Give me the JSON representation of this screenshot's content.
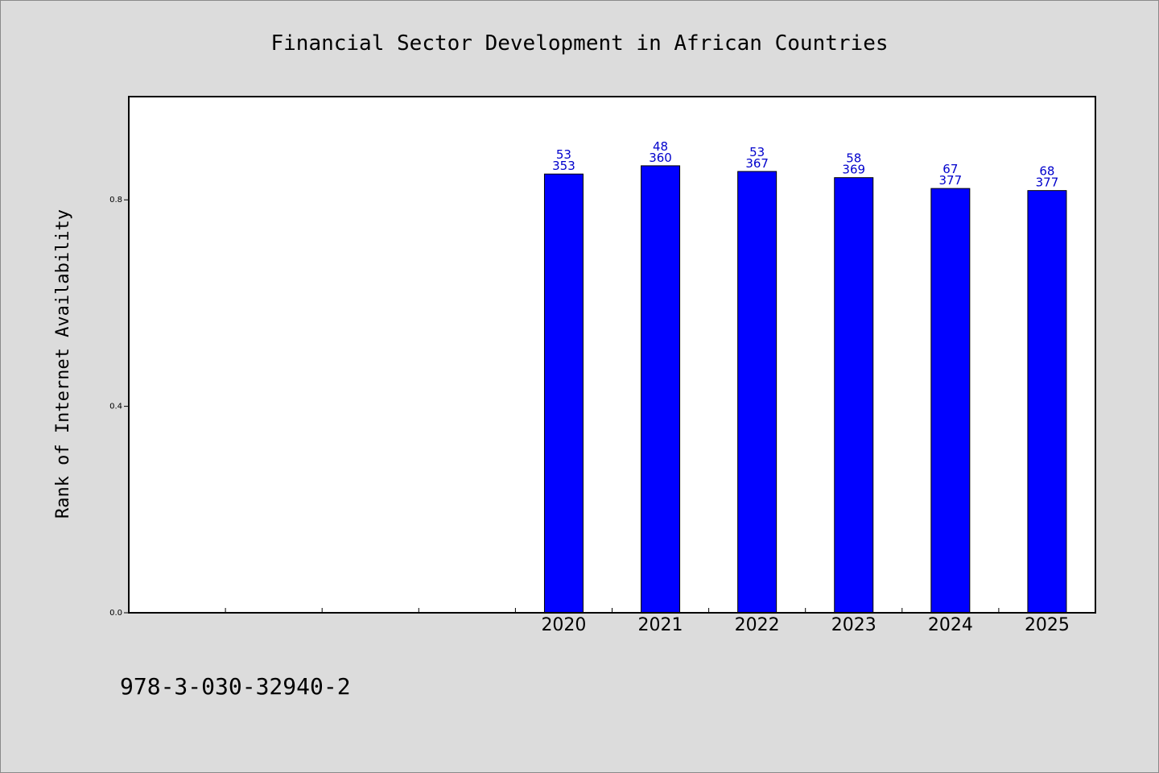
{
  "chart_data": {
    "type": "bar",
    "title": "Financial Sector Development in African Countries",
    "ylabel": "Rank of Internet Availability",
    "xlabel": "",
    "ylim": [
      0,
      1.0
    ],
    "yticks": [
      {
        "value": 0.0,
        "label": "0.0"
      },
      {
        "value": 0.4,
        "label": "0.4"
      },
      {
        "value": 0.8,
        "label": "0.8"
      }
    ],
    "category_slots": 10,
    "categories": [
      "2020",
      "2021",
      "2022",
      "2023",
      "2024",
      "2025"
    ],
    "first_category_slot": 4,
    "values": [
      0.85,
      0.866,
      0.855,
      0.843,
      0.822,
      0.818
    ],
    "labels_top": [
      "53",
      "48",
      "53",
      "58",
      "67",
      "68"
    ],
    "labels_bottom": [
      "353",
      "360",
      "367",
      "369",
      "377",
      "377"
    ],
    "bar_color": "#0000ff",
    "label_color": "#0000cc",
    "grid": false,
    "legend": "none"
  },
  "footer_note": "978-3-030-32940-2"
}
